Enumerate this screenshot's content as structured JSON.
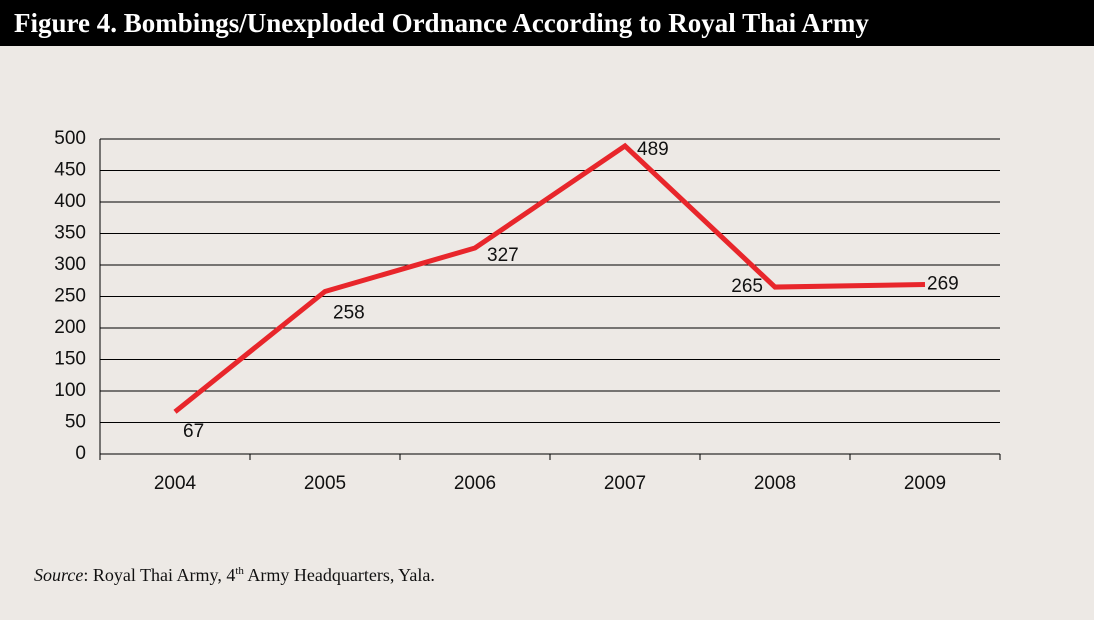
{
  "chart_data": {
    "type": "line",
    "title": "Figure 4. Bombings/Unexploded Ordnance According to Royal Thai Army",
    "categories": [
      "2004",
      "2005",
      "2006",
      "2007",
      "2008",
      "2009"
    ],
    "series": [
      {
        "name": "Bombings/Unexploded Ordnance",
        "color": "#e8262b",
        "values": [
          67,
          258,
          327,
          489,
          265,
          269
        ]
      }
    ],
    "ylim": [
      0,
      500
    ],
    "yticks": [
      0,
      50,
      100,
      150,
      200,
      250,
      300,
      350,
      400,
      450,
      500
    ],
    "grid": true,
    "data_labels": true
  },
  "source": {
    "label": "Source",
    "text_1": ": Royal Thai Army, 4",
    "superscript": "th",
    "text_2": " Army Headquarters, Yala."
  }
}
